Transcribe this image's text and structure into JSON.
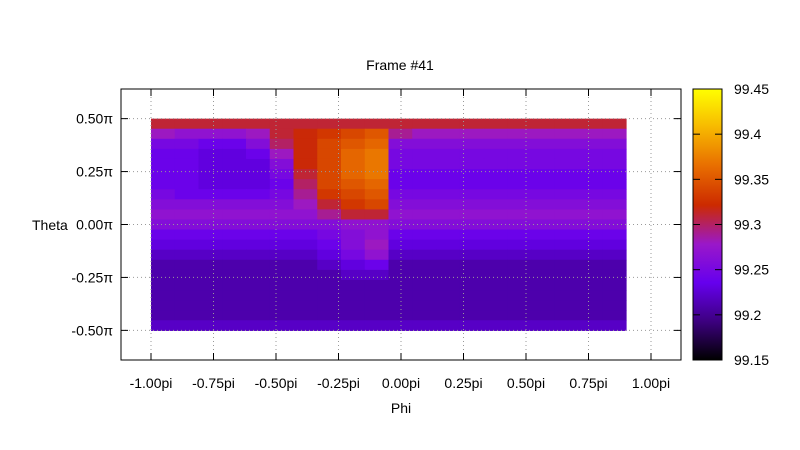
{
  "chart_data": {
    "type": "heatmap",
    "title": "Frame #41",
    "xlabel": "Phi",
    "ylabel": "Theta",
    "x_ticks": [
      {
        "value": -1.0,
        "label": "-1.00pi"
      },
      {
        "value": -0.75,
        "label": "-0.75pi"
      },
      {
        "value": -0.5,
        "label": "-0.50pi"
      },
      {
        "value": -0.25,
        "label": "-0.25pi"
      },
      {
        "value": 0.0,
        "label": "0.00pi"
      },
      {
        "value": 0.25,
        "label": "0.25pi"
      },
      {
        "value": 0.5,
        "label": "0.50pi"
      },
      {
        "value": 0.75,
        "label": "0.75pi"
      },
      {
        "value": 1.0,
        "label": "1.00pi"
      }
    ],
    "y_ticks": [
      {
        "value": 0.5,
        "label": "0.50π"
      },
      {
        "value": 0.25,
        "label": "0.25π"
      },
      {
        "value": 0.0,
        "label": "0.00π"
      },
      {
        "value": -0.25,
        "label": "-0.25π"
      },
      {
        "value": -0.5,
        "label": "-0.50π"
      }
    ],
    "xlim": [
      -1.12,
      1.12
    ],
    "ylim": [
      -0.64,
      0.64
    ],
    "data_x_range": [
      -1.0,
      0.9
    ],
    "data_y_range": [
      -0.5,
      0.5
    ],
    "grid": true,
    "colorbar": {
      "min": 99.15,
      "max": 99.45,
      "ticks": [
        "99.45",
        "99.4",
        "99.35",
        "99.3",
        "99.25",
        "99.2",
        "99.15"
      ],
      "tick_values": [
        99.45,
        99.4,
        99.35,
        99.3,
        99.25,
        99.2,
        99.15
      ],
      "colormap": [
        "#000000",
        "#3d0080",
        "#6600ee",
        "#9a18c8",
        "#cc2a00",
        "#e86d00",
        "#f7b800",
        "#ffff00"
      ]
    },
    "phi": [
      -1.0,
      -0.9,
      -0.8,
      -0.7,
      -0.6,
      -0.5,
      -0.4,
      -0.3,
      -0.2,
      -0.1,
      0.0,
      0.1,
      0.2,
      0.3,
      0.4,
      0.5,
      0.6,
      0.7,
      0.8,
      0.9
    ],
    "theta": [
      0.5,
      0.45,
      0.4,
      0.35,
      0.3,
      0.25,
      0.2,
      0.15,
      0.1,
      0.05,
      0.0,
      -0.05,
      -0.1,
      -0.15,
      -0.2,
      -0.25,
      -0.3,
      -0.35,
      -0.4,
      -0.45,
      -0.5
    ],
    "values": [
      [
        99.31,
        99.31,
        99.31,
        99.31,
        99.31,
        99.31,
        99.31,
        99.31,
        99.31,
        99.31,
        99.31,
        99.31,
        99.31,
        99.31,
        99.31,
        99.31,
        99.31,
        99.31,
        99.31,
        99.31
      ],
      [
        99.28,
        99.27,
        99.27,
        99.27,
        99.28,
        99.31,
        99.32,
        99.33,
        99.34,
        99.35,
        99.29,
        99.28,
        99.28,
        99.28,
        99.28,
        99.28,
        99.28,
        99.28,
        99.28,
        99.28
      ],
      [
        99.25,
        99.25,
        99.24,
        99.24,
        99.26,
        99.3,
        99.32,
        99.34,
        99.35,
        99.36,
        99.26,
        99.26,
        99.26,
        99.26,
        99.26,
        99.26,
        99.26,
        99.26,
        99.26,
        99.26
      ],
      [
        99.24,
        99.24,
        99.23,
        99.23,
        99.24,
        99.28,
        99.32,
        99.34,
        99.36,
        99.37,
        99.25,
        99.25,
        99.25,
        99.25,
        99.25,
        99.25,
        99.25,
        99.25,
        99.25,
        99.25
      ],
      [
        99.24,
        99.24,
        99.23,
        99.23,
        99.23,
        99.26,
        99.32,
        99.34,
        99.36,
        99.37,
        99.25,
        99.25,
        99.25,
        99.25,
        99.25,
        99.25,
        99.25,
        99.25,
        99.25,
        99.25
      ],
      [
        99.24,
        99.24,
        99.23,
        99.23,
        99.23,
        99.25,
        99.31,
        99.34,
        99.36,
        99.37,
        99.24,
        99.24,
        99.24,
        99.24,
        99.24,
        99.24,
        99.24,
        99.24,
        99.24,
        99.24
      ],
      [
        99.24,
        99.24,
        99.23,
        99.23,
        99.23,
        99.24,
        99.3,
        99.34,
        99.35,
        99.36,
        99.24,
        99.24,
        99.24,
        99.24,
        99.24,
        99.24,
        99.24,
        99.24,
        99.24,
        99.24
      ],
      [
        99.25,
        99.24,
        99.24,
        99.24,
        99.24,
        99.25,
        99.29,
        99.33,
        99.34,
        99.35,
        99.25,
        99.25,
        99.25,
        99.25,
        99.25,
        99.25,
        99.25,
        99.25,
        99.25,
        99.25
      ],
      [
        99.26,
        99.26,
        99.26,
        99.26,
        99.26,
        99.26,
        99.28,
        99.31,
        99.33,
        99.34,
        99.26,
        99.26,
        99.26,
        99.26,
        99.26,
        99.26,
        99.26,
        99.26,
        99.26,
        99.26
      ],
      [
        99.27,
        99.27,
        99.27,
        99.27,
        99.27,
        99.27,
        99.27,
        99.29,
        99.31,
        99.31,
        99.27,
        99.27,
        99.27,
        99.27,
        99.27,
        99.27,
        99.27,
        99.27,
        99.27,
        99.27
      ],
      [
        99.26,
        99.26,
        99.26,
        99.26,
        99.26,
        99.26,
        99.26,
        99.26,
        99.27,
        99.27,
        99.26,
        99.26,
        99.26,
        99.26,
        99.26,
        99.26,
        99.26,
        99.26,
        99.26,
        99.26
      ],
      [
        99.24,
        99.24,
        99.24,
        99.24,
        99.24,
        99.24,
        99.24,
        99.25,
        99.26,
        99.27,
        99.24,
        99.24,
        99.24,
        99.24,
        99.24,
        99.24,
        99.24,
        99.24,
        99.24,
        99.24
      ],
      [
        99.23,
        99.23,
        99.23,
        99.23,
        99.23,
        99.23,
        99.23,
        99.24,
        99.26,
        99.28,
        99.23,
        99.23,
        99.23,
        99.23,
        99.23,
        99.23,
        99.23,
        99.23,
        99.23,
        99.23
      ],
      [
        99.22,
        99.22,
        99.22,
        99.22,
        99.22,
        99.22,
        99.22,
        99.23,
        99.25,
        99.27,
        99.22,
        99.22,
        99.22,
        99.22,
        99.22,
        99.22,
        99.22,
        99.22,
        99.22,
        99.22
      ],
      [
        99.21,
        99.21,
        99.21,
        99.21,
        99.21,
        99.21,
        99.21,
        99.22,
        99.23,
        99.24,
        99.21,
        99.21,
        99.21,
        99.21,
        99.21,
        99.21,
        99.21,
        99.21,
        99.21,
        99.21
      ],
      [
        99.21,
        99.21,
        99.21,
        99.21,
        99.21,
        99.21,
        99.21,
        99.21,
        99.22,
        99.22,
        99.21,
        99.21,
        99.21,
        99.21,
        99.21,
        99.21,
        99.21,
        99.21,
        99.21,
        99.21
      ],
      [
        99.21,
        99.21,
        99.21,
        99.21,
        99.21,
        99.21,
        99.21,
        99.21,
        99.21,
        99.21,
        99.21,
        99.21,
        99.21,
        99.21,
        99.21,
        99.21,
        99.21,
        99.21,
        99.21,
        99.21
      ],
      [
        99.21,
        99.21,
        99.21,
        99.21,
        99.21,
        99.21,
        99.21,
        99.21,
        99.21,
        99.21,
        99.21,
        99.21,
        99.21,
        99.21,
        99.21,
        99.21,
        99.21,
        99.21,
        99.21,
        99.21
      ],
      [
        99.21,
        99.21,
        99.21,
        99.21,
        99.21,
        99.21,
        99.21,
        99.21,
        99.21,
        99.21,
        99.21,
        99.21,
        99.21,
        99.21,
        99.21,
        99.21,
        99.21,
        99.21,
        99.21,
        99.21
      ],
      [
        99.21,
        99.21,
        99.21,
        99.21,
        99.21,
        99.21,
        99.21,
        99.21,
        99.21,
        99.21,
        99.21,
        99.21,
        99.21,
        99.21,
        99.21,
        99.21,
        99.21,
        99.21,
        99.21,
        99.21
      ],
      [
        99.22,
        99.22,
        99.22,
        99.22,
        99.22,
        99.22,
        99.22,
        99.22,
        99.22,
        99.22,
        99.22,
        99.22,
        99.22,
        99.22,
        99.22,
        99.22,
        99.22,
        99.22,
        99.22,
        99.22
      ]
    ]
  }
}
